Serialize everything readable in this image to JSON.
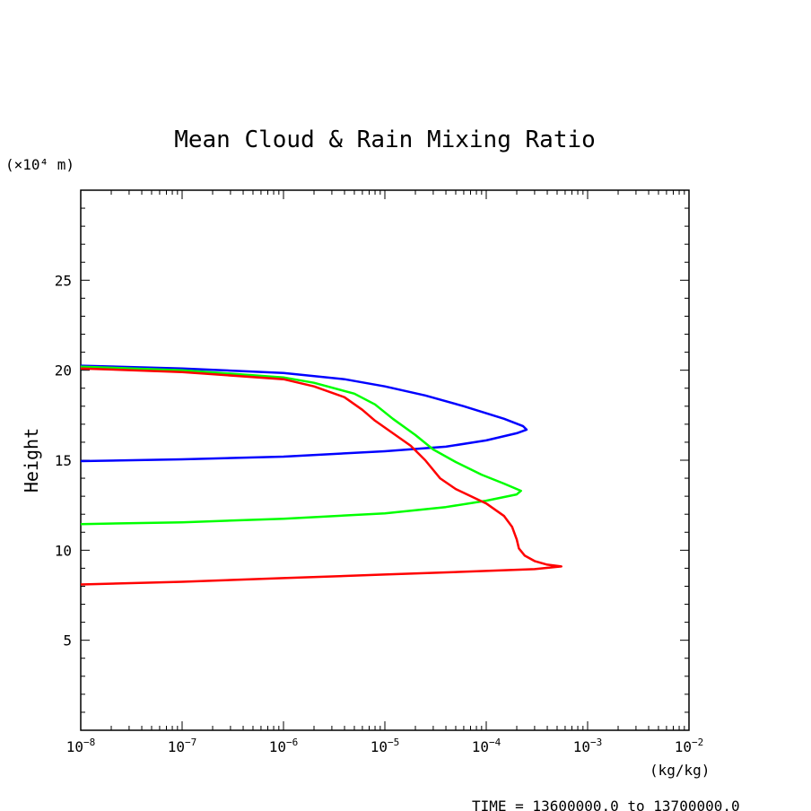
{
  "chart_data": {
    "type": "line",
    "title": "Mean Cloud & Rain Mixing Ratio",
    "ylabel": "Height",
    "yunit": "(×10⁴ m)",
    "xunit": "(kg/kg)",
    "footer": "TIME = 13600000.0 to 13700000.0",
    "xscale": "log",
    "xlim": [
      1e-08,
      0.01
    ],
    "ylim": [
      0,
      30
    ],
    "grid": false,
    "y_ticks": [
      5,
      10,
      15,
      20,
      25
    ],
    "y_tick_labels": [
      "5",
      "10",
      "15",
      "20",
      "25"
    ],
    "x_ticks": [
      1e-08,
      1e-07,
      1e-06,
      1e-05,
      0.0001,
      0.001,
      0.01
    ],
    "x_tick_labels": [
      {
        "base": "10",
        "exp": "−8"
      },
      {
        "base": "10",
        "exp": "−7"
      },
      {
        "base": "10",
        "exp": "−6"
      },
      {
        "base": "10",
        "exp": "−5"
      },
      {
        "base": "10",
        "exp": "−4"
      },
      {
        "base": "10",
        "exp": "−3"
      },
      {
        "base": "10",
        "exp": "−2"
      }
    ],
    "series": [
      {
        "color": "#0000ff",
        "points": [
          [
            1e-08,
            14.95
          ],
          [
            1e-07,
            15.05
          ],
          [
            1e-06,
            15.2
          ],
          [
            1e-05,
            15.5
          ],
          [
            4e-05,
            15.75
          ],
          [
            0.0001,
            16.1
          ],
          [
            0.0002,
            16.5
          ],
          [
            0.00025,
            16.7
          ],
          [
            0.00023,
            16.9
          ],
          [
            0.00015,
            17.3
          ],
          [
            6e-05,
            18.0
          ],
          [
            2.5e-05,
            18.6
          ],
          [
            1e-05,
            19.1
          ],
          [
            4e-06,
            19.5
          ],
          [
            1e-06,
            19.85
          ],
          [
            1e-07,
            20.1
          ],
          [
            1e-08,
            20.25
          ]
        ]
      },
      {
        "color": "#00ff00",
        "points": [
          [
            1e-08,
            11.45
          ],
          [
            1e-07,
            11.55
          ],
          [
            1e-06,
            11.75
          ],
          [
            1e-05,
            12.05
          ],
          [
            4e-05,
            12.4
          ],
          [
            0.0001,
            12.75
          ],
          [
            0.0002,
            13.1
          ],
          [
            0.00022,
            13.3
          ],
          [
            0.00015,
            13.7
          ],
          [
            9e-05,
            14.2
          ],
          [
            5e-05,
            14.9
          ],
          [
            3e-05,
            15.6
          ],
          [
            2e-05,
            16.4
          ],
          [
            1.2e-05,
            17.3
          ],
          [
            8e-06,
            18.1
          ],
          [
            5e-06,
            18.7
          ],
          [
            2e-06,
            19.3
          ],
          [
            1e-06,
            19.6
          ],
          [
            1e-07,
            20.0
          ],
          [
            1e-08,
            20.2
          ]
        ]
      },
      {
        "color": "#ff0000",
        "points": [
          [
            1e-08,
            8.1
          ],
          [
            1e-07,
            8.25
          ],
          [
            1e-06,
            8.45
          ],
          [
            1e-05,
            8.65
          ],
          [
            0.0001,
            8.85
          ],
          [
            0.0003,
            8.95
          ],
          [
            0.00055,
            9.1
          ],
          [
            0.0004,
            9.2
          ],
          [
            0.0003,
            9.4
          ],
          [
            0.00024,
            9.7
          ],
          [
            0.00021,
            10.1
          ],
          [
            0.0002,
            10.6
          ],
          [
            0.00018,
            11.3
          ],
          [
            0.00015,
            11.9
          ],
          [
            0.0001,
            12.6
          ],
          [
            5e-05,
            13.4
          ],
          [
            3.5e-05,
            14.0
          ],
          [
            2.5e-05,
            15.0
          ],
          [
            1.8e-05,
            15.8
          ],
          [
            1.2e-05,
            16.5
          ],
          [
            8e-06,
            17.2
          ],
          [
            6e-06,
            17.8
          ],
          [
            4e-06,
            18.5
          ],
          [
            2e-06,
            19.1
          ],
          [
            1e-06,
            19.5
          ],
          [
            1e-07,
            19.9
          ],
          [
            1e-08,
            20.1
          ]
        ]
      }
    ]
  }
}
